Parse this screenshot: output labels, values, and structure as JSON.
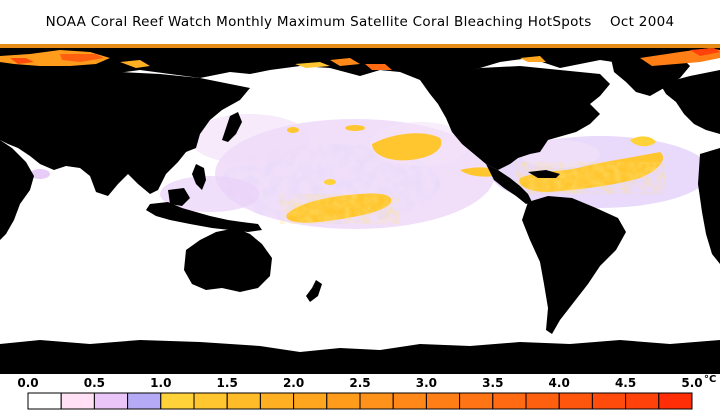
{
  "title": "NOAA Coral Reef Watch Monthly Maximum Satellite Coral Bleaching HotSpots    Oct 2004",
  "colorbar": {
    "tick_labels": [
      "0.0",
      "0.5",
      "1.0",
      "1.5",
      "2.0",
      "2.5",
      "3.0",
      "3.5",
      "4.0",
      "4.5",
      "5.0"
    ],
    "unit": "°C",
    "range": [
      0.0,
      5.0
    ],
    "bins": [
      {
        "from": 0.0,
        "to": 0.25,
        "color": "#ffffff"
      },
      {
        "from": 0.25,
        "to": 0.5,
        "color": "#ffe0f4"
      },
      {
        "from": 0.5,
        "to": 0.75,
        "color": "#eac6f8"
      },
      {
        "from": 0.75,
        "to": 1.0,
        "color": "#b4aaf6"
      },
      {
        "from": 1.0,
        "to": 1.25,
        "color": "#ffd23a"
      },
      {
        "from": 1.25,
        "to": 1.5,
        "color": "#ffc630"
      },
      {
        "from": 1.5,
        "to": 1.75,
        "color": "#ffbc28"
      },
      {
        "from": 1.75,
        "to": 2.0,
        "color": "#ffb022"
      },
      {
        "from": 2.0,
        "to": 2.25,
        "color": "#ffa61e"
      },
      {
        "from": 2.25,
        "to": 2.5,
        "color": "#ff9c1c"
      },
      {
        "from": 2.5,
        "to": 2.75,
        "color": "#ff921a"
      },
      {
        "from": 2.75,
        "to": 3.0,
        "color": "#ff8818"
      },
      {
        "from": 3.0,
        "to": 3.25,
        "color": "#ff7e16"
      },
      {
        "from": 3.25,
        "to": 3.5,
        "color": "#ff7414"
      },
      {
        "from": 3.5,
        "to": 3.75,
        "color": "#ff6a12"
      },
      {
        "from": 3.75,
        "to": 4.0,
        "color": "#ff6010"
      },
      {
        "from": 4.0,
        "to": 4.25,
        "color": "#ff560e"
      },
      {
        "from": 4.25,
        "to": 4.5,
        "color": "#ff4c0c"
      },
      {
        "from": 4.5,
        "to": 4.75,
        "color": "#ff420a"
      },
      {
        "from": 4.75,
        "to": 5.0,
        "color": "#ff2e06"
      }
    ]
  },
  "map": {
    "land_color": "#000000",
    "ocean_color": "#ffffff",
    "layer": "Coral Bleaching HotSpots"
  }
}
